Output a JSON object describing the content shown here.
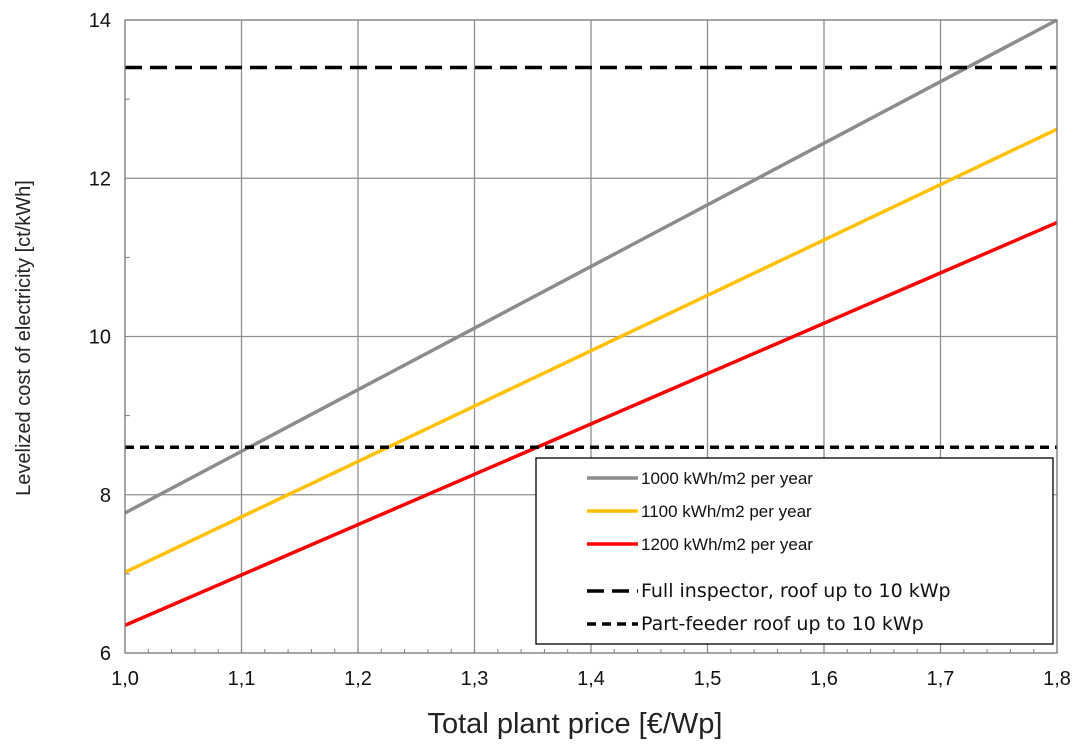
{
  "chart_data": {
    "type": "line",
    "xlabel": "Total plant price [€/Wp]",
    "ylabel": "Levelized cost of electricity [ct/kWh]",
    "xlim": [
      1.0,
      1.8
    ],
    "ylim": [
      6,
      14
    ],
    "x_ticks": [
      "1,0",
      "1,1",
      "1,2",
      "1,3",
      "1,4",
      "1,5",
      "1,6",
      "1,7",
      "1,8"
    ],
    "y_ticks": [
      "6",
      "8",
      "10",
      "12",
      "14"
    ],
    "grid": true,
    "legend_position": "lower-right",
    "series": [
      {
        "name": "1000 kWh/m2 per year",
        "color": "#8c8c8c",
        "style": "solid",
        "x": [
          1.0,
          1.8
        ],
        "y": [
          7.77,
          14.0
        ]
      },
      {
        "name": "1100 kWh/m2 per year",
        "color": "#ffc000",
        "style": "solid",
        "x": [
          1.0,
          1.8
        ],
        "y": [
          7.02,
          12.62
        ]
      },
      {
        "name": "1200 kWh/m2 per year",
        "color": "#ff0000",
        "style": "solid",
        "x": [
          1.0,
          1.8
        ],
        "y": [
          6.35,
          11.44
        ]
      },
      {
        "name": "Full inspector, roof up to 10 kWp",
        "color": "#000000",
        "style": "long-dash",
        "x": [
          1.0,
          1.8
        ],
        "y": [
          13.4,
          13.4
        ]
      },
      {
        "name": "Part-feeder roof up to 10 kWp",
        "color": "#000000",
        "style": "short-dash",
        "x": [
          1.0,
          1.8
        ],
        "y": [
          8.6,
          8.6
        ]
      }
    ]
  }
}
